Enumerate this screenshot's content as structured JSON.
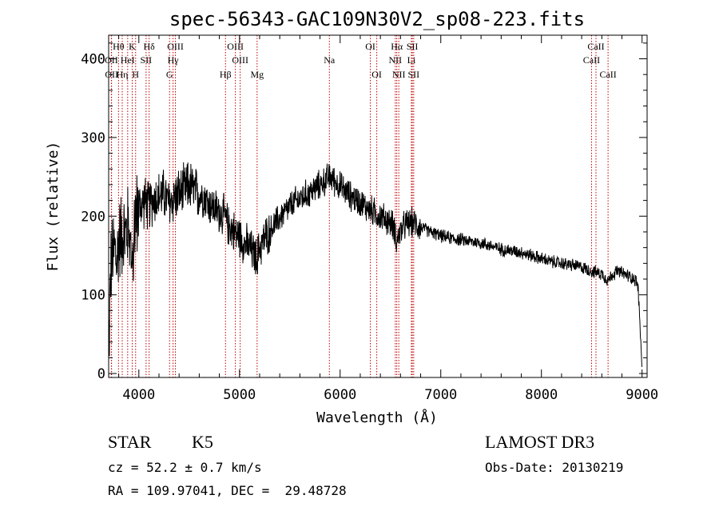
{
  "chart_data": {
    "type": "line",
    "title": "spec-56343-GAC109N30V2_sp08-223.fits",
    "xlabel": "Wavelength (Å)",
    "ylabel": "Flux (relative)",
    "xlim": [
      3700,
      9050
    ],
    "ylim": [
      -5,
      430
    ],
    "xticks": [
      4000,
      5000,
      6000,
      7000,
      8000,
      9000
    ],
    "yticks": [
      0,
      100,
      200,
      300,
      400
    ],
    "series": [
      {
        "name": "spectrum",
        "x": [
          3700,
          3720,
          3740,
          3760,
          3780,
          3800,
          3830,
          3860,
          3890,
          3920,
          3950,
          3980,
          4000,
          4030,
          4060,
          4090,
          4120,
          4150,
          4200,
          4250,
          4300,
          4330,
          4360,
          4400,
          4450,
          4500,
          4530,
          4560,
          4600,
          4650,
          4700,
          4750,
          4800,
          4850,
          4880,
          4920,
          4950,
          5000,
          5050,
          5100,
          5150,
          5170,
          5200,
          5250,
          5300,
          5350,
          5400,
          5450,
          5500,
          5550,
          5600,
          5650,
          5700,
          5750,
          5800,
          5850,
          5890,
          5920,
          5950,
          6000,
          6050,
          6100,
          6150,
          6200,
          6250,
          6300,
          6350,
          6400,
          6450,
          6500,
          6540,
          6563,
          6580,
          6620,
          6660,
          6700,
          6750,
          6800,
          6850,
          6900,
          7000,
          7100,
          7200,
          7300,
          7400,
          7500,
          7600,
          7700,
          7800,
          7900,
          8000,
          8100,
          8200,
          8300,
          8400,
          8500,
          8550,
          8600,
          8662,
          8700,
          8750,
          8800,
          8850,
          8900,
          8940,
          8960,
          8980,
          9000
        ],
        "y": [
          20,
          130,
          150,
          160,
          140,
          170,
          180,
          175,
          185,
          200,
          190,
          205,
          210,
          215,
          220,
          212,
          218,
          222,
          225,
          228,
          215,
          220,
          225,
          228,
          232,
          240,
          235,
          230,
          228,
          225,
          215,
          210,
          205,
          200,
          190,
          185,
          180,
          175,
          165,
          160,
          150,
          145,
          160,
          172,
          180,
          190,
          198,
          205,
          212,
          218,
          222,
          226,
          230,
          235,
          240,
          245,
          250,
          248,
          244,
          238,
          232,
          226,
          222,
          218,
          212,
          208,
          204,
          200,
          196,
          192,
          185,
          165,
          175,
          185,
          190,
          192,
          190,
          186,
          183,
          180,
          175,
          172,
          170,
          168,
          166,
          162,
          158,
          156,
          154,
          150,
          146,
          142,
          140,
          138,
          135,
          130,
          128,
          127,
          118,
          125,
          130,
          128,
          125,
          122,
          118,
          110,
          60,
          5
        ]
      }
    ],
    "spectral_lines": [
      {
        "label": "Hθ",
        "x": 3798,
        "row": 1
      },
      {
        "label": "OII",
        "x": 3727,
        "row": 2
      },
      {
        "label": "OII",
        "x": 3729,
        "row": 3
      },
      {
        "label": "HeI",
        "x": 3889,
        "row": 2
      },
      {
        "label": "Hη",
        "x": 3835,
        "row": 3
      },
      {
        "label": "K",
        "x": 3934,
        "row": 1
      },
      {
        "label": "H",
        "x": 3968,
        "row": 3
      },
      {
        "label": "Hδ",
        "x": 4102,
        "row": 1
      },
      {
        "label": "SII",
        "x": 4072,
        "row": 2
      },
      {
        "label": "OIII",
        "x": 4363,
        "row": 1
      },
      {
        "label": "Hγ",
        "x": 4340,
        "row": 2
      },
      {
        "label": "G",
        "x": 4305,
        "row": 3
      },
      {
        "label": "Hβ",
        "x": 4861,
        "row": 3
      },
      {
        "label": "OIII",
        "x": 4959,
        "row": 1
      },
      {
        "label": "OIII",
        "x": 5007,
        "row": 2
      },
      {
        "label": "Mg",
        "x": 5175,
        "row": 3
      },
      {
        "label": "Na",
        "x": 5893,
        "row": 2
      },
      {
        "label": "OI",
        "x": 6300,
        "row": 1
      },
      {
        "label": "OI",
        "x": 6364,
        "row": 3
      },
      {
        "label": "Hα",
        "x": 6563,
        "row": 1
      },
      {
        "label": "NII",
        "x": 6548,
        "row": 2
      },
      {
        "label": "NII",
        "x": 6583,
        "row": 3
      },
      {
        "label": "SII",
        "x": 6717,
        "row": 1
      },
      {
        "label": "Li",
        "x": 6708,
        "row": 2
      },
      {
        "label": "SII",
        "x": 6731,
        "row": 3
      },
      {
        "label": "CaII",
        "x": 8542,
        "row": 1
      },
      {
        "label": "CaII",
        "x": 8498,
        "row": 2
      },
      {
        "label": "CaII",
        "x": 8662,
        "row": 3
      }
    ]
  },
  "info": {
    "object_class": "STAR",
    "subclass": "K5",
    "survey": "LAMOST DR3",
    "redshift": "cz = 52.2 ± 0.7 km/s",
    "obs_date": "Obs-Date: 20130219",
    "coords": "RA = 109.97041, DEC =  29.48728"
  }
}
